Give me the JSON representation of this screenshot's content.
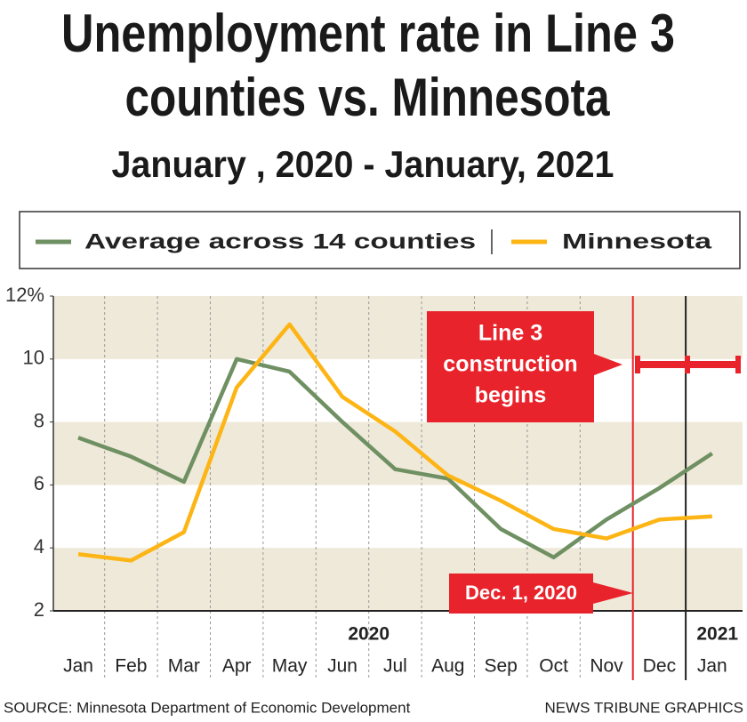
{
  "chart_data": {
    "type": "line",
    "title_lines": [
      "Unemployment rate in Line 3",
      "counties vs. Minnesota"
    ],
    "subtitle": "January , 2020 - January, 2021",
    "categories": [
      "Jan",
      "Feb",
      "Mar",
      "Apr",
      "May",
      "Jun",
      "Jul",
      "Aug",
      "Sep",
      "Oct",
      "Nov",
      "Dec",
      "Jan"
    ],
    "years": [
      "2020",
      "2021"
    ],
    "series": [
      {
        "name": "Average across 14 counties",
        "color": "#6f9062",
        "values": [
          7.5,
          6.9,
          6.1,
          10.0,
          9.6,
          8.0,
          6.5,
          6.2,
          4.6,
          3.7,
          4.9,
          5.9,
          7.0
        ]
      },
      {
        "name": "Minnesota",
        "color": "#fdb515",
        "values": [
          3.8,
          3.6,
          4.5,
          9.1,
          11.1,
          8.8,
          7.7,
          6.3,
          5.5,
          4.6,
          4.3,
          4.9,
          5.0
        ]
      }
    ],
    "ylim": [
      2,
      12
    ],
    "yticks": [
      2,
      4,
      6,
      8,
      10,
      {
        "value": 12,
        "label": "12%"
      }
    ],
    "annotations": {
      "construction": [
        "Line 3",
        "construction",
        "begins"
      ],
      "date": "Dec. 1, 2020"
    },
    "source": "SOURCE: Minnesota Department of Economic Development",
    "credit": "NEWS TRIBUNE GRAPHICS"
  }
}
